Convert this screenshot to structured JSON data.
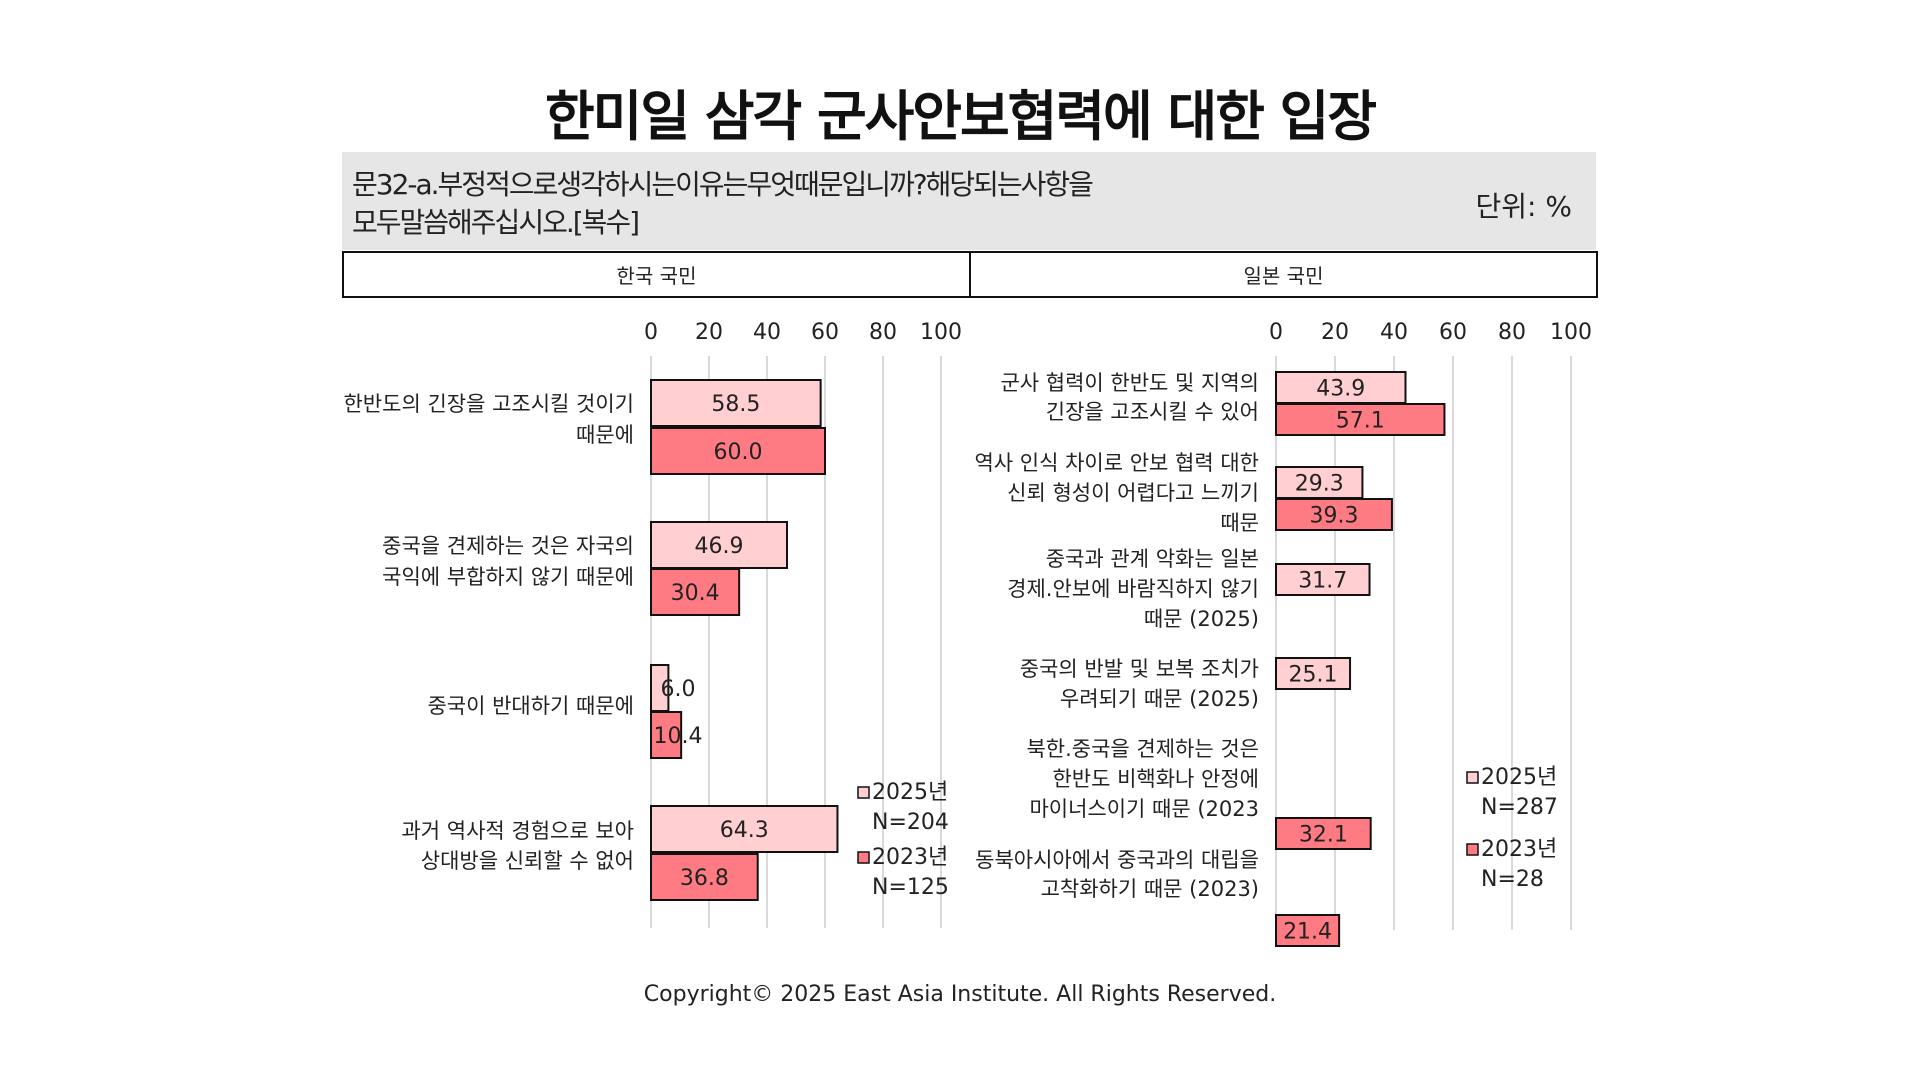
{
  "title": "한미일 삼각 군사안보협력에 대한 입장",
  "question": {
    "line1": "문32-a.부정적으로생각하시는이유는무엇때문입니까?해당되는사항을",
    "line2": "모두말씀해주십시오.[복수]"
  },
  "unit": "단위: %",
  "headers": {
    "korea": "한국 국민",
    "japan": "일본 국민"
  },
  "footer": "Copyright© 2025 East Asia Institute. All Rights Reserved.",
  "colors": {
    "series_2025": "#ffcfd1",
    "series_2023": "#ff7b84",
    "grid": "#d9d9d9",
    "border": "#111111"
  },
  "chart_data": [
    {
      "type": "bar",
      "orientation": "horizontal",
      "panel": "한국 국민",
      "xlim": [
        0,
        100
      ],
      "ticks": [
        0,
        20,
        40,
        60,
        80,
        100
      ],
      "categories": [
        [
          "한반도의 긴장을 고조시킬 것이기",
          "때문에"
        ],
        [
          "중국을 견제하는 것은 자국의",
          "국익에 부합하지 않기 때문에"
        ],
        [
          "중국이 반대하기 때문에"
        ],
        [
          "과거 역사적 경험으로 보아",
          "상대방을 신뢰할 수 없어"
        ]
      ],
      "series": [
        {
          "name": "2025년",
          "note": "N=204",
          "values": [
            58.5,
            46.9,
            6.0,
            64.3
          ],
          "labels": [
            "58.5",
            "46.9",
            "6.0",
            "64.3"
          ]
        },
        {
          "name": "2023년",
          "note": "N=125",
          "values": [
            60.0,
            30.4,
            10.4,
            36.8
          ],
          "labels": [
            "60.0",
            "30.4",
            "10.4",
            "36.8"
          ]
        }
      ]
    },
    {
      "type": "bar",
      "orientation": "horizontal",
      "panel": "일본 국민",
      "xlim": [
        0,
        100
      ],
      "ticks": [
        0,
        20,
        40,
        60,
        80,
        100
      ],
      "categories": [
        [
          "군사 협력이 한반도 및 지역의",
          "긴장을 고조시킬 수 있어"
        ],
        [
          "역사 인식 차이로 안보 협력 대한",
          "신뢰 형성이 어렵다고 느끼기",
          "때문"
        ],
        [
          "중국과 관계 악화는 일본",
          "경제.안보에 바람직하지 않기",
          "때문 (2025)"
        ],
        [
          "중국의 반발 및 보복 조치가",
          "우려되기 때문 (2025)"
        ],
        [
          "북한.중국을 견제하는 것은",
          "한반도 비핵화나 안정에",
          "마이너스이기 때문 (2023"
        ],
        [
          "동북아시아에서 중국과의 대립을",
          "고착화하기 때문 (2023)"
        ]
      ],
      "series": [
        {
          "name": "2025년",
          "note": "N=287",
          "values": [
            43.9,
            29.3,
            31.7,
            25.1,
            null,
            null
          ],
          "labels": [
            "43.9",
            "29.3",
            "31.7",
            "25.1",
            "",
            ""
          ]
        },
        {
          "name": "2023년",
          "note": "N=28",
          "values": [
            57.1,
            39.3,
            null,
            null,
            32.1,
            21.4
          ],
          "labels": [
            "57.1",
            "39.3",
            "",
            "",
            "32.1",
            "21.4"
          ]
        }
      ]
    }
  ]
}
